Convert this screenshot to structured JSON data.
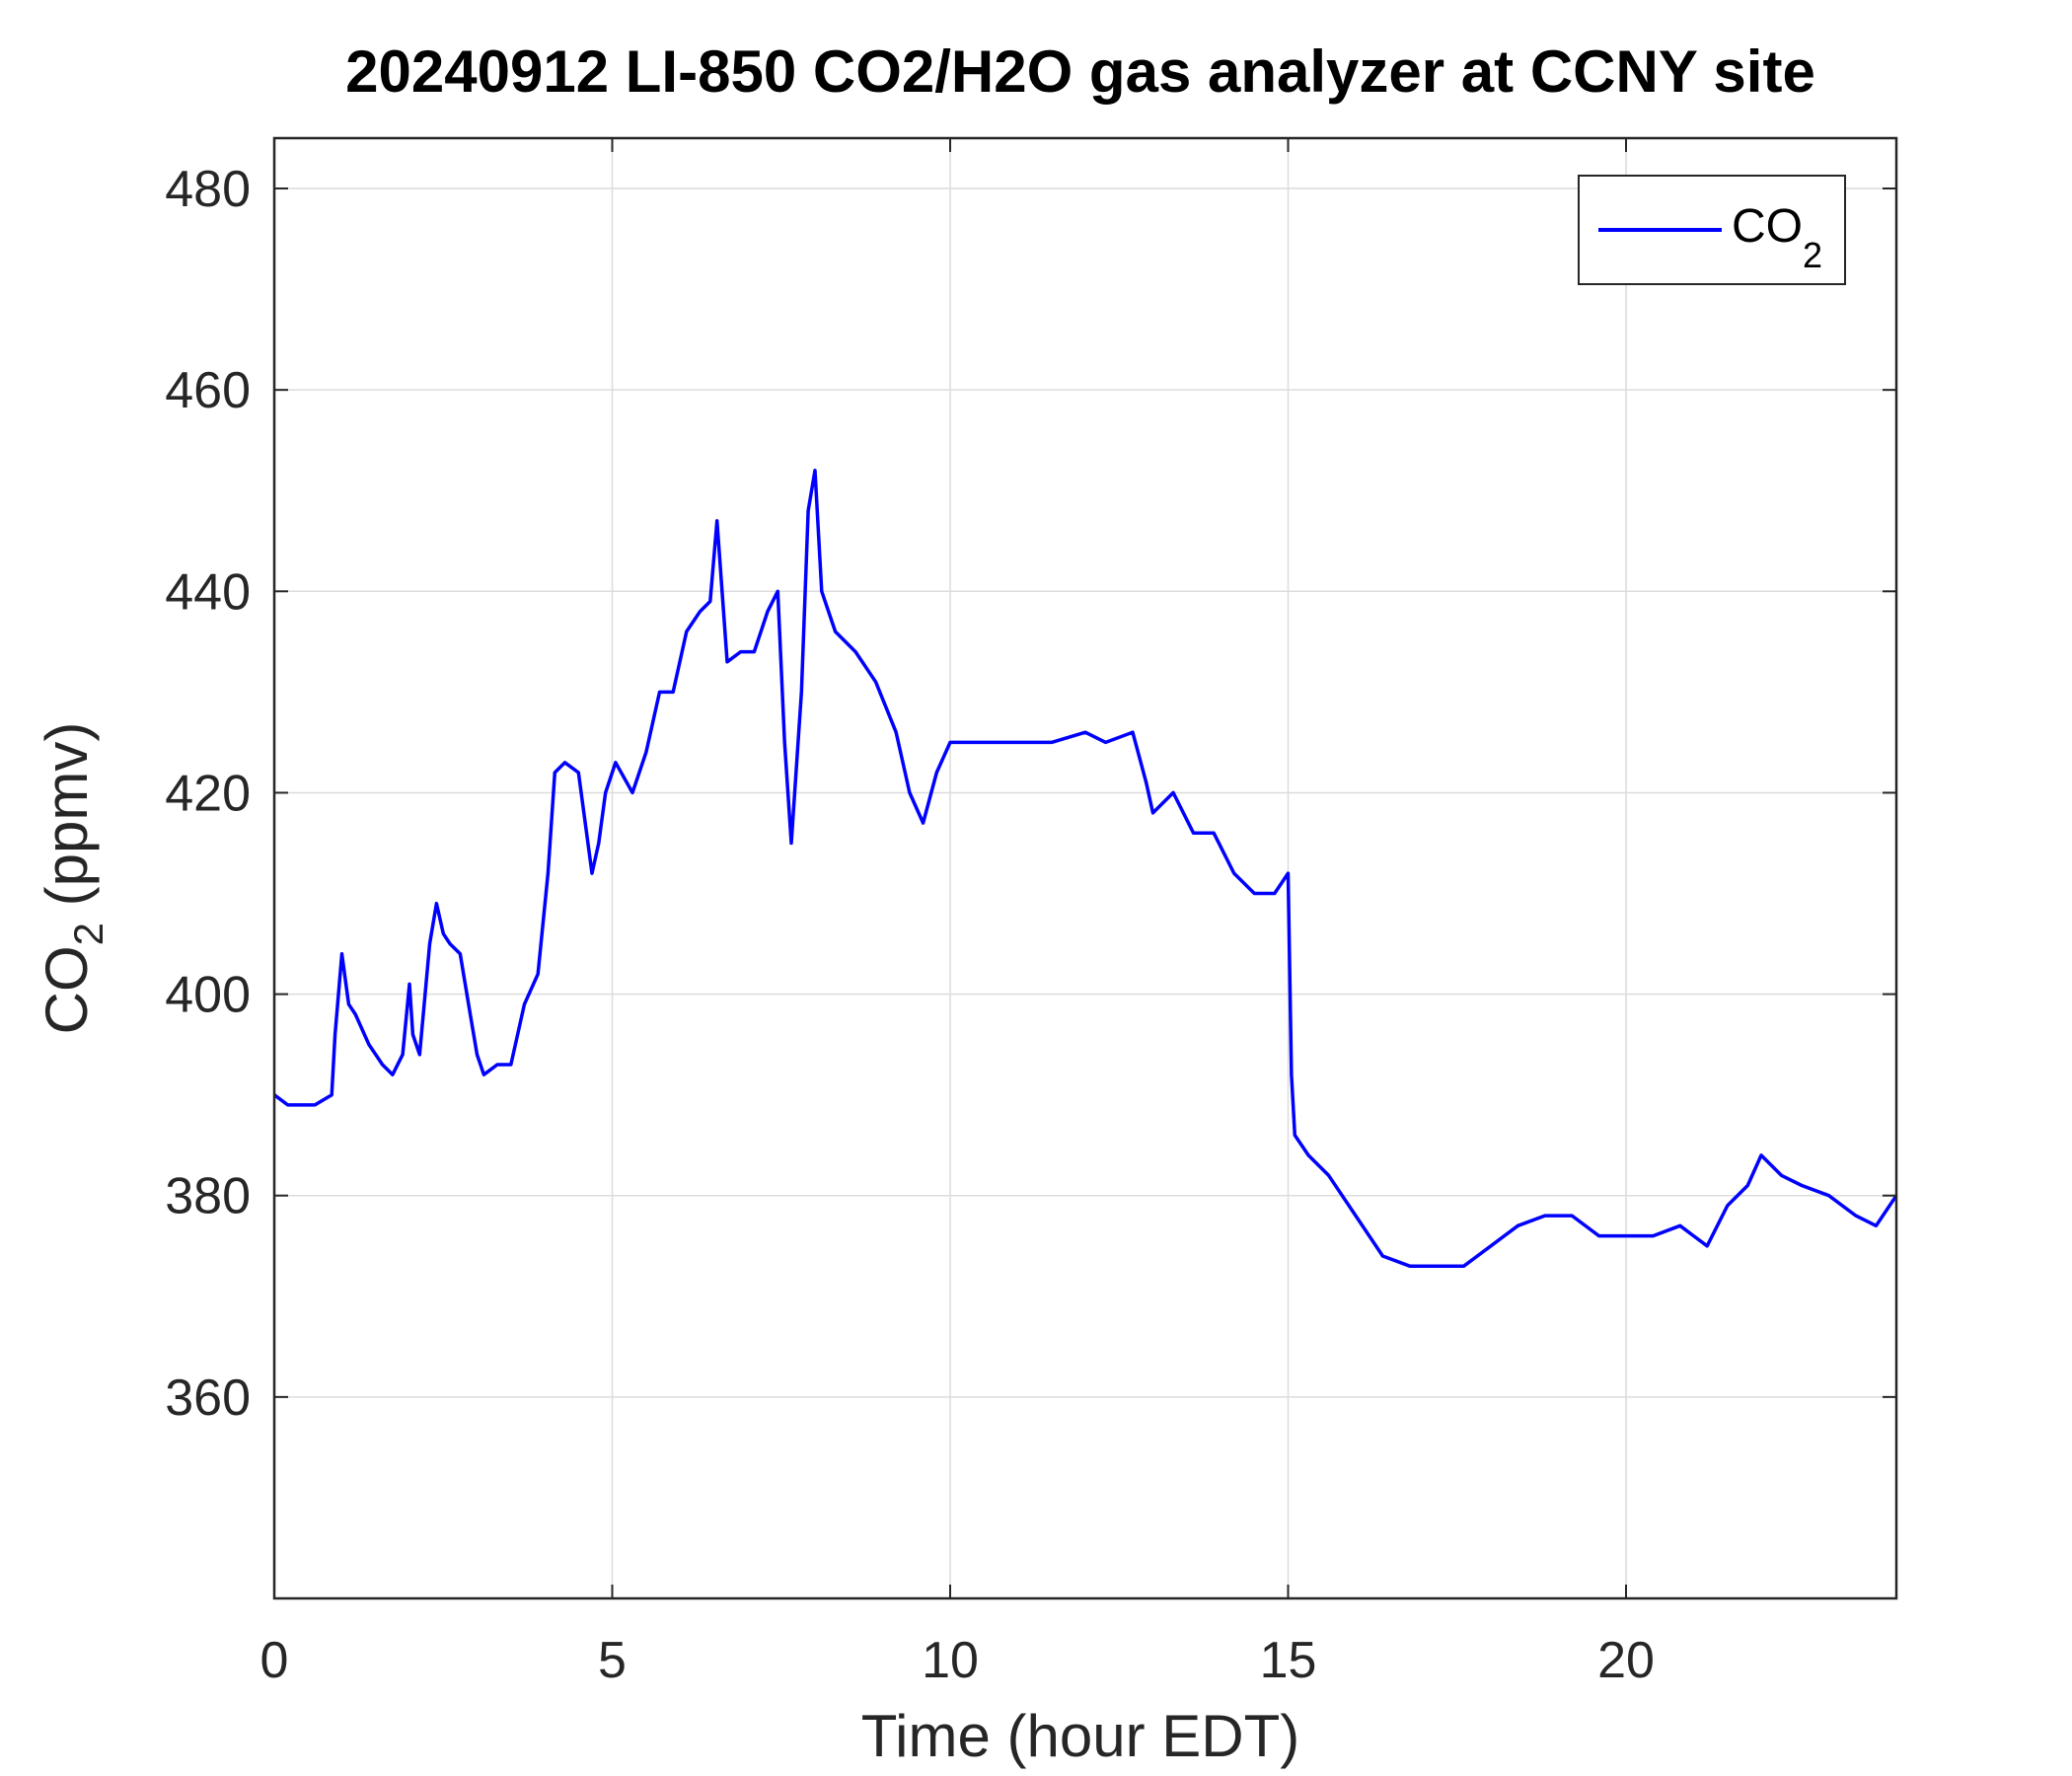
{
  "chart_data": {
    "type": "line",
    "title": "20240912 LI-850 CO2/H2O gas analyzer at CCNY site",
    "xlabel": "Time (hour EDT)",
    "ylabel_main": "CO",
    "ylabel_sub": "2",
    "ylabel_unit": " (ppmv)",
    "xlim": [
      0,
      24
    ],
    "ylim": [
      340,
      485
    ],
    "xticks": [
      0,
      5,
      10,
      15,
      20
    ],
    "xtick_labels": [
      "0",
      "5",
      "10",
      "15",
      "20"
    ],
    "yticks": [
      360,
      380,
      400,
      420,
      440,
      460,
      480
    ],
    "ytick_labels": [
      "360",
      "380",
      "400",
      "420",
      "440",
      "460",
      "480"
    ],
    "grid": true,
    "legend_position": "top-right",
    "series": [
      {
        "name_main": "CO",
        "name_sub": "2",
        "color": "#0000ff",
        "x": [
          0,
          0.2,
          0.4,
          0.6,
          0.85,
          0.9,
          1.0,
          1.1,
          1.2,
          1.4,
          1.6,
          1.75,
          1.9,
          2.0,
          2.05,
          2.15,
          2.3,
          2.4,
          2.5,
          2.6,
          2.75,
          2.9,
          3.0,
          3.1,
          3.3,
          3.5,
          3.7,
          3.9,
          4.05,
          4.15,
          4.3,
          4.5,
          4.7,
          4.8,
          4.9,
          5.05,
          5.3,
          5.5,
          5.7,
          5.9,
          6.1,
          6.3,
          6.45,
          6.55,
          6.7,
          6.9,
          7.1,
          7.3,
          7.45,
          7.55,
          7.65,
          7.8,
          7.9,
          8.0,
          8.1,
          8.3,
          8.6,
          8.9,
          9.2,
          9.4,
          9.6,
          9.8,
          10.0,
          10.5,
          11.0,
          11.5,
          12.0,
          12.3,
          12.7,
          12.9,
          13.0,
          13.3,
          13.6,
          13.9,
          14.2,
          14.5,
          14.8,
          15.0,
          15.05,
          15.1,
          15.3,
          15.6,
          16.0,
          16.4,
          16.8,
          17.2,
          17.6,
          18.0,
          18.4,
          18.8,
          19.2,
          19.6,
          20.0,
          20.4,
          20.8,
          21.0,
          21.2,
          21.5,
          21.8,
          22.0,
          22.3,
          22.6,
          23.0,
          23.4,
          23.7,
          24.0
        ],
        "y": [
          390,
          389,
          389,
          389,
          390,
          396,
          404,
          399,
          398,
          395,
          393,
          392,
          394,
          401,
          396,
          394,
          405,
          409,
          406,
          405,
          404,
          398,
          394,
          392,
          393,
          393,
          399,
          402,
          412,
          422,
          423,
          422,
          412,
          415,
          420,
          423,
          420,
          424,
          430,
          430,
          436,
          438,
          439,
          447,
          433,
          434,
          434,
          438,
          440,
          425,
          415,
          430,
          448,
          452,
          440,
          436,
          434,
          431,
          426,
          420,
          417,
          422,
          425,
          425,
          425,
          425,
          426,
          425,
          426,
          421,
          418,
          420,
          416,
          416,
          412,
          410,
          410,
          412,
          392,
          386,
          384,
          382,
          378,
          374,
          373,
          373,
          373,
          375,
          377,
          378,
          378,
          376,
          376,
          376,
          377,
          376,
          375,
          379,
          381,
          384,
          382,
          381,
          380,
          378,
          377,
          380
        ]
      }
    ]
  }
}
